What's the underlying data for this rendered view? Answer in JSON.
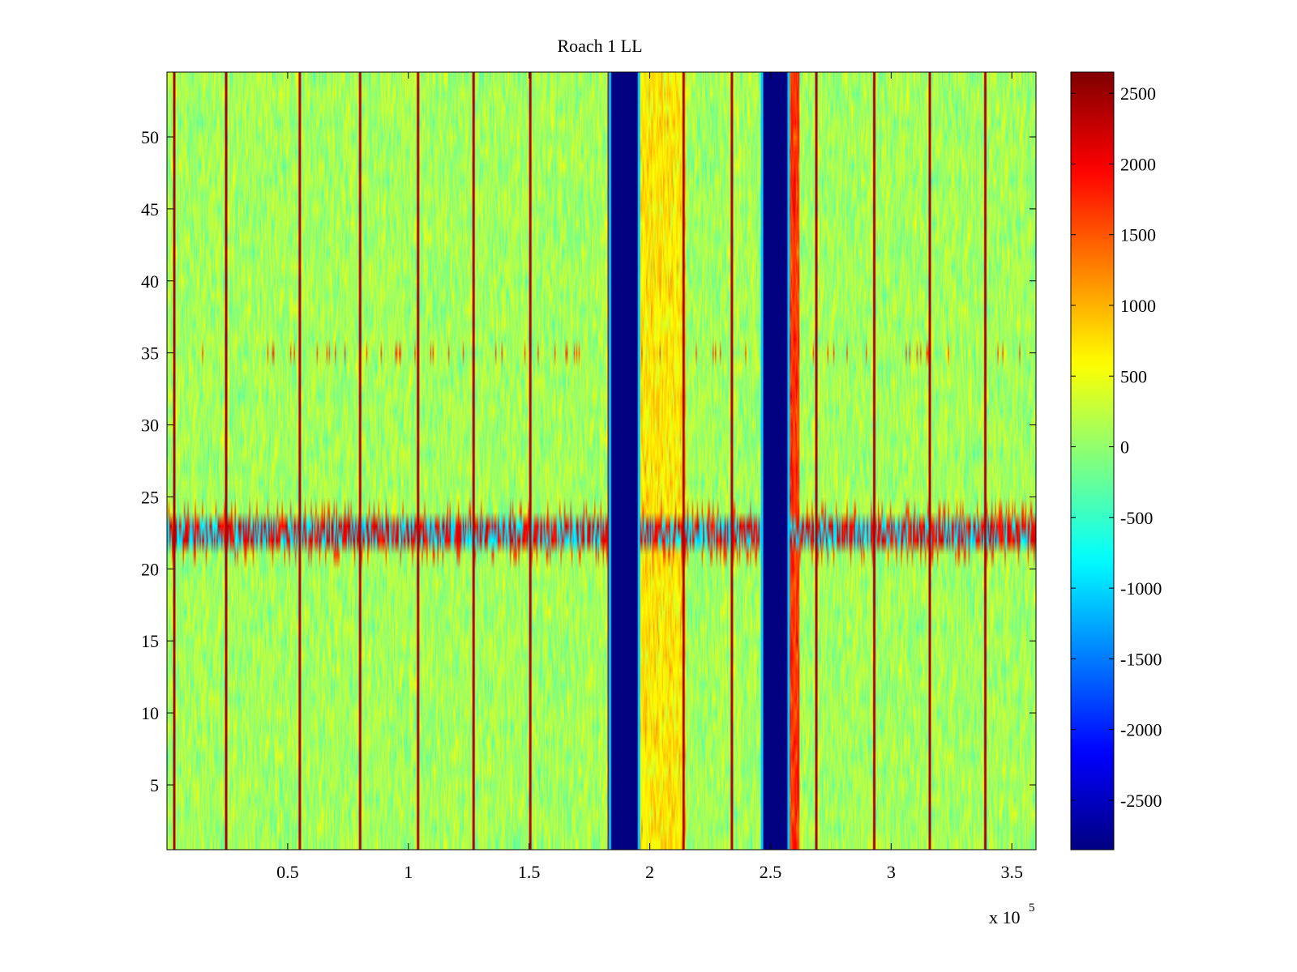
{
  "chart_data": {
    "type": "heatmap",
    "title": "Roach 1 LL",
    "xlabel": "",
    "ylabel": "",
    "colormap": "jet",
    "xlim": [
      0,
      360000
    ],
    "ylim": [
      0.5,
      54.5
    ],
    "clim": [
      -2850,
      2650
    ],
    "x_exponent_label": {
      "base": "x 10",
      "exp": "5"
    },
    "x_ticks": [
      {
        "value": 50000,
        "label": "0.5"
      },
      {
        "value": 100000,
        "label": "1"
      },
      {
        "value": 150000,
        "label": "1.5"
      },
      {
        "value": 200000,
        "label": "2"
      },
      {
        "value": 250000,
        "label": "2.5"
      },
      {
        "value": 300000,
        "label": "3"
      },
      {
        "value": 350000,
        "label": "3.5"
      }
    ],
    "y_ticks": [
      {
        "value": 5,
        "label": "5"
      },
      {
        "value": 10,
        "label": "10"
      },
      {
        "value": 15,
        "label": "15"
      },
      {
        "value": 20,
        "label": "20"
      },
      {
        "value": 25,
        "label": "25"
      },
      {
        "value": 30,
        "label": "30"
      },
      {
        "value": 35,
        "label": "35"
      },
      {
        "value": 40,
        "label": "40"
      },
      {
        "value": 45,
        "label": "45"
      },
      {
        "value": 50,
        "label": "50"
      }
    ],
    "colorbar_ticks": [
      {
        "value": 2500,
        "label": "2500"
      },
      {
        "value": 2000,
        "label": "2000"
      },
      {
        "value": 1500,
        "label": "1500"
      },
      {
        "value": 1000,
        "label": "1000"
      },
      {
        "value": 500,
        "label": "500"
      },
      {
        "value": 0,
        "label": "0"
      },
      {
        "value": -500,
        "label": "-500"
      },
      {
        "value": -1000,
        "label": "-1000"
      },
      {
        "value": -1500,
        "label": "-1500"
      },
      {
        "value": -2000,
        "label": "-2000"
      },
      {
        "value": -2500,
        "label": "-2500"
      }
    ],
    "background_level": 100,
    "background_noise": 300,
    "rfi_lines": [
      3000,
      24500,
      55000,
      80000,
      104000,
      127000,
      150500,
      183000,
      214000,
      234000,
      247000,
      269000,
      293000,
      316000,
      339000
    ],
    "rfi_line_value": 2400,
    "dropout_bands": [
      {
        "x_start": 184000,
        "x_end": 195000,
        "value": -2850
      },
      {
        "x_start": 247000,
        "x_end": 257000,
        "value": -2850
      }
    ],
    "elevated_regions": [
      {
        "x_start": 195000,
        "x_end": 215000,
        "value": 700
      },
      {
        "x_start": 258000,
        "x_end": 262000,
        "value": 1700
      }
    ],
    "rfi_row_band": {
      "y_start": 21.5,
      "y_end": 23.5,
      "values": [
        -900,
        2300
      ]
    },
    "rfi_row_edges": {
      "rows": [
        21,
        24
      ],
      "value": 1600
    },
    "speckle_row": {
      "y": 35,
      "value": 1600
    }
  }
}
